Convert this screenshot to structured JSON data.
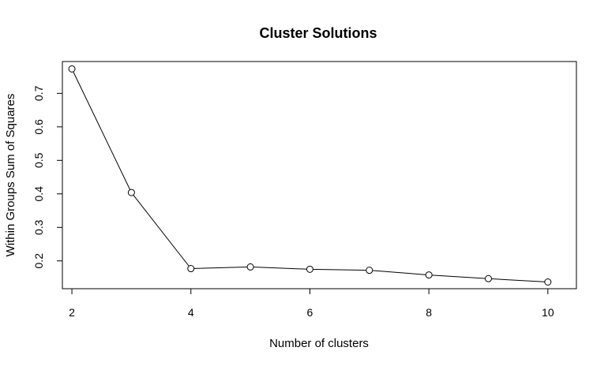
{
  "chart_data": {
    "type": "line",
    "title": "Cluster Solutions",
    "xlabel": "Number of clusters",
    "ylabel": "Within Groups Sum of Squares",
    "x": [
      2,
      3,
      4,
      5,
      6,
      7,
      8,
      9,
      10
    ],
    "series": [
      {
        "values": [
          0.773,
          0.404,
          0.177,
          0.182,
          0.175,
          0.172,
          0.158,
          0.147,
          0.137
        ]
      }
    ],
    "xlim": [
      1.84,
      10.48
    ],
    "ylim": [
      0.117,
      0.795
    ],
    "xticks": [
      2,
      4,
      6,
      8,
      10
    ],
    "yticks": [
      0.2,
      0.3,
      0.4,
      0.5,
      0.6,
      0.7
    ],
    "xtick_labels": [
      "2",
      "4",
      "6",
      "8",
      "10"
    ],
    "ytick_labels": [
      "0.2",
      "0.3",
      "0.4",
      "0.5",
      "0.6",
      "0.7"
    ],
    "grid": false,
    "line_color": "#000000",
    "point_style": "open-circle"
  }
}
